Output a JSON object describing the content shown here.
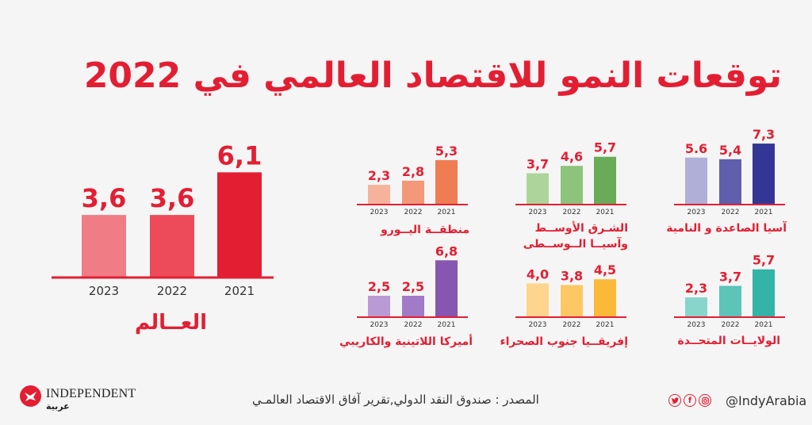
{
  "title": "توقعات النمو للاقتصاد العالمي في 2022",
  "colors": {
    "accent": "#e41e32",
    "axis": "#e41e32",
    "value_label": "#e41e32"
  },
  "chart_data": [
    {
      "type": "bar",
      "id": "world",
      "title": "العــالم",
      "categories": [
        "2023",
        "2022",
        "2021"
      ],
      "values": [
        3.6,
        3.6,
        6.1
      ],
      "value_labels": [
        "3,6",
        "3,6",
        "6,1"
      ],
      "colors": [
        "#f07c86",
        "#ee4b5a",
        "#e41e32"
      ],
      "ylim": [
        0,
        6.1
      ]
    },
    {
      "type": "bar",
      "id": "asia",
      "title": "آسيا الصاعدة و النامية",
      "categories": [
        "2023",
        "2022",
        "2021"
      ],
      "values": [
        5.6,
        5.4,
        7.3
      ],
      "value_labels": [
        "5.6",
        "5,4",
        "7,3"
      ],
      "colors": [
        "#b0afd8",
        "#5f5fad",
        "#343696"
      ],
      "ylim": [
        0,
        7.3
      ]
    },
    {
      "type": "bar",
      "id": "mideast",
      "title": "الشـرق الأوســط وآسيــا الــوســطى",
      "title_lines": [
        "الشـرق الأوســط",
        "وآسيــا الــوســطى"
      ],
      "categories": [
        "2023",
        "2022",
        "2021"
      ],
      "values": [
        3.7,
        4.6,
        5.7
      ],
      "value_labels": [
        "3,7",
        "4,6",
        "5,7"
      ],
      "colors": [
        "#add49b",
        "#8dc47b",
        "#6aab58"
      ],
      "ylim": [
        0,
        7.3
      ]
    },
    {
      "type": "bar",
      "id": "euro",
      "title": "منطقــة اليــورو",
      "categories": [
        "2023",
        "2022",
        "2021"
      ],
      "values": [
        2.3,
        2.8,
        5.3
      ],
      "value_labels": [
        "2,3",
        "2,8",
        "5,3"
      ],
      "colors": [
        "#f6b39c",
        "#f39879",
        "#f07c53"
      ],
      "ylim": [
        0,
        7.3
      ]
    },
    {
      "type": "bar",
      "id": "usa",
      "title": "الولايــات المتحــدة",
      "categories": [
        "2023",
        "2022",
        "2021"
      ],
      "values": [
        2.3,
        3.7,
        5.7
      ],
      "value_labels": [
        "2,3",
        "3,7",
        "5,7"
      ],
      "colors": [
        "#88d5cc",
        "#5cc4b8",
        "#33b4a6"
      ],
      "ylim": [
        0,
        7.3
      ]
    },
    {
      "type": "bar",
      "id": "africa",
      "title": "إفريقــيا جنوب الصحراء",
      "categories": [
        "2023",
        "2022",
        "2021"
      ],
      "values": [
        4.0,
        3.8,
        4.5
      ],
      "value_labels": [
        "4,0",
        "3,8",
        "4,5"
      ],
      "colors": [
        "#fdd58e",
        "#fdc863",
        "#fbb939"
      ],
      "ylim": [
        0,
        7.3
      ]
    },
    {
      "type": "bar",
      "id": "latam",
      "title": "أميركا اللاتينية والكاريبي",
      "categories": [
        "2023",
        "2022",
        "2021"
      ],
      "values": [
        2.5,
        2.5,
        6.8
      ],
      "value_labels": [
        "2,5",
        "2,5",
        "6,8"
      ],
      "colors": [
        "#b99ad4",
        "#a07bc7",
        "#8656b1"
      ],
      "ylim": [
        0,
        7.3
      ]
    }
  ],
  "footer": {
    "logo_text": "INDEPENDENT",
    "logo_arabic": "عربية",
    "source": "المصدر : صندوق النقد الدولي,تقرير آفاق الاقتصاد العالمـي",
    "handle": "@IndyArabia",
    "social_icons": [
      {
        "name": "twitter-icon",
        "glyph": "t"
      },
      {
        "name": "facebook-icon",
        "glyph": "f"
      },
      {
        "name": "instagram-icon",
        "glyph": "◎"
      }
    ]
  }
}
